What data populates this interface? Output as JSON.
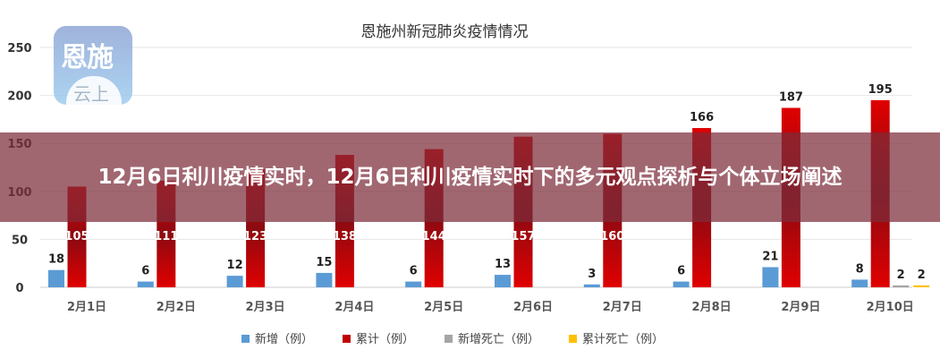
{
  "banner": {
    "headline": "12月6日利川疫情实时，12月6日利川疫情实时下的多元观点探析与个体立场阐述"
  },
  "logo": {
    "line1": "恩施",
    "line2": "云上"
  },
  "chart_data": {
    "type": "bar",
    "title": "恩施州新冠肺炎疫情情况",
    "categories": [
      "2月1日",
      "2月2日",
      "2月3日",
      "2月4日",
      "2月5日",
      "2月6日",
      "2月7日",
      "2月8日",
      "2月9日",
      "2月10日"
    ],
    "series": [
      {
        "name": "新增（例）",
        "color": "#5b9bd5",
        "values": [
          18,
          6,
          12,
          15,
          6,
          13,
          3,
          6,
          21,
          8
        ]
      },
      {
        "name": "累计（例）",
        "color": "#c00000",
        "values": [
          105,
          111,
          123,
          138,
          144,
          157,
          160,
          166,
          187,
          195
        ]
      },
      {
        "name": "新增死亡（例）",
        "color": "#a5a5a5",
        "values": [
          0,
          0,
          0,
          0,
          0,
          0,
          0,
          0,
          0,
          2
        ]
      },
      {
        "name": "累计死亡（例）",
        "color": "#ffc000",
        "values": [
          0,
          0,
          0,
          0,
          0,
          0,
          0,
          0,
          0,
          2
        ]
      }
    ],
    "yticks": [
      0,
      50,
      100,
      150,
      200,
      250
    ],
    "ylim": [
      0,
      250
    ],
    "grid": true,
    "legend": "bottom"
  }
}
